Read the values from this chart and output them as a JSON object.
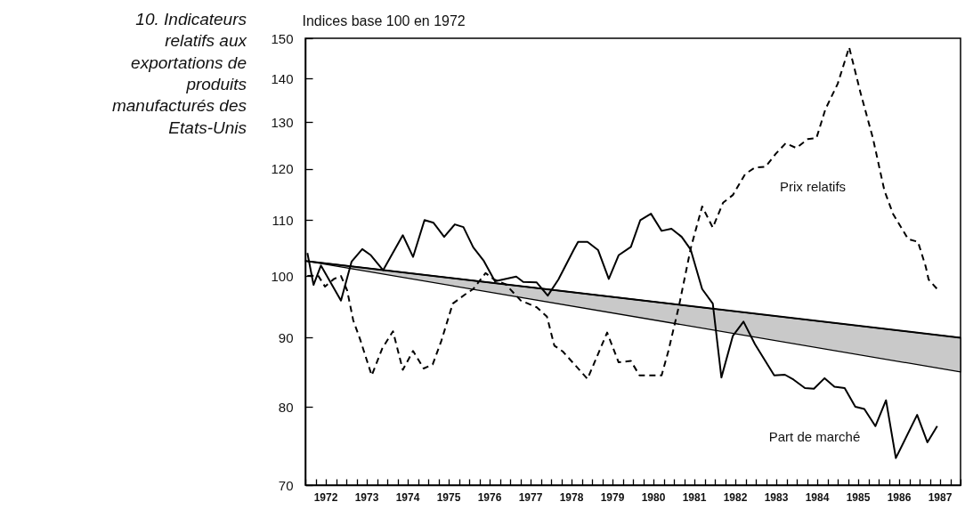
{
  "chart_data": {
    "type": "line",
    "title": "10. Indicateurs relatifs aux exportations de produits manufacturés des Etats-Unis",
    "ylabel": "Indices base 100 en 1972",
    "xlim": [
      1972,
      1988
    ],
    "ylim": [
      70,
      150
    ],
    "log": true,
    "grid": false,
    "legend": false,
    "yticks": [
      70,
      80,
      90,
      100,
      110,
      120,
      130,
      140,
      150
    ],
    "xticks": [
      {
        "value": 1972,
        "label": null
      },
      {
        "value": 1972.25,
        "label": null
      },
      {
        "value": 1972.5,
        "label": "1972"
      },
      {
        "value": 1972.75,
        "label": null
      },
      {
        "value": 1973,
        "label": null
      },
      {
        "value": 1973.25,
        "label": null
      },
      {
        "value": 1973.5,
        "label": "1973"
      },
      {
        "value": 1973.75,
        "label": null
      },
      {
        "value": 1974,
        "label": null
      },
      {
        "value": 1974.25,
        "label": null
      },
      {
        "value": 1974.5,
        "label": "1974"
      },
      {
        "value": 1974.75,
        "label": null
      },
      {
        "value": 1975,
        "label": null
      },
      {
        "value": 1975.25,
        "label": null
      },
      {
        "value": 1975.5,
        "label": "1975"
      },
      {
        "value": 1975.75,
        "label": null
      },
      {
        "value": 1976,
        "label": null
      },
      {
        "value": 1976.25,
        "label": null
      },
      {
        "value": 1976.5,
        "label": "1976"
      },
      {
        "value": 1976.75,
        "label": null
      },
      {
        "value": 1977,
        "label": null
      },
      {
        "value": 1977.25,
        "label": null
      },
      {
        "value": 1977.5,
        "label": "1977"
      },
      {
        "value": 1977.75,
        "label": null
      },
      {
        "value": 1978,
        "label": null
      },
      {
        "value": 1978.25,
        "label": null
      },
      {
        "value": 1978.5,
        "label": "1978"
      },
      {
        "value": 1978.75,
        "label": null
      },
      {
        "value": 1979,
        "label": null
      },
      {
        "value": 1979.25,
        "label": null
      },
      {
        "value": 1979.5,
        "label": "1979"
      },
      {
        "value": 1979.75,
        "label": null
      },
      {
        "value": 1980,
        "label": null
      },
      {
        "value": 1980.25,
        "label": null
      },
      {
        "value": 1980.5,
        "label": "1980"
      },
      {
        "value": 1980.75,
        "label": null
      },
      {
        "value": 1981,
        "label": null
      },
      {
        "value": 1981.25,
        "label": null
      },
      {
        "value": 1981.5,
        "label": "1981"
      },
      {
        "value": 1981.75,
        "label": null
      },
      {
        "value": 1982,
        "label": null
      },
      {
        "value": 1982.25,
        "label": null
      },
      {
        "value": 1982.5,
        "label": "1982"
      },
      {
        "value": 1982.75,
        "label": null
      },
      {
        "value": 1983,
        "label": null
      },
      {
        "value": 1983.25,
        "label": null
      },
      {
        "value": 1983.5,
        "label": "1983"
      },
      {
        "value": 1983.75,
        "label": null
      },
      {
        "value": 1984,
        "label": null
      },
      {
        "value": 1984.25,
        "label": null
      },
      {
        "value": 1984.5,
        "label": "1984"
      },
      {
        "value": 1984.75,
        "label": null
      },
      {
        "value": 1985,
        "label": null
      },
      {
        "value": 1985.25,
        "label": null
      },
      {
        "value": 1985.5,
        "label": "1985"
      },
      {
        "value": 1985.75,
        "label": null
      },
      {
        "value": 1986,
        "label": null
      },
      {
        "value": 1986.25,
        "label": null
      },
      {
        "value": 1986.5,
        "label": "1986"
      },
      {
        "value": 1986.75,
        "label": null
      },
      {
        "value": 1987,
        "label": null
      },
      {
        "value": 1987.25,
        "label": null
      },
      {
        "value": 1987.5,
        "label": "1987"
      },
      {
        "value": 1987.75,
        "label": null
      },
      {
        "value": 1988,
        "label": null
      }
    ],
    "series": [
      {
        "type": "line",
        "color": "#000000",
        "line_style": "solid",
        "x": [
          1972,
          1988
        ],
        "values": [
          102.6,
          90.0
        ],
        "lower": [
          102.6,
          84.9
        ],
        "upper": [
          102.6,
          90.0
        ]
      },
      {
        "name": "Prix relatifs",
        "type": "line",
        "color": "#000000",
        "line_style": "dashed",
        "x": [
          1972.05,
          1972.31,
          1972.48,
          1972.7,
          1972.87,
          1973.02,
          1973.17,
          1973.34,
          1973.62,
          1973.88,
          1974.14,
          1974.38,
          1974.63,
          1974.89,
          1975.11,
          1975.32,
          1975.6,
          1975.88,
          1976.1,
          1976.4,
          1976.61,
          1976.89,
          1977.26,
          1977.65,
          1977.9,
          1978.08,
          1978.29,
          1978.89,
          1979.37,
          1979.65,
          1979.95,
          1980.16,
          1980.7,
          1980.87,
          1981.13,
          1981.41,
          1981.69,
          1981.95,
          1982.2,
          1982.44,
          1982.74,
          1982.98,
          1983.24,
          1983.49,
          1983.73,
          1983.99,
          1984.27,
          1984.48,
          1984.7,
          1985.0,
          1985.28,
          1985.56,
          1985.86,
          1986.14,
          1986.35,
          1986.72,
          1986.96,
          1987.15,
          1987.22,
          1987.43
        ],
        "values": [
          100.0,
          100.1,
          98.2,
          99.5,
          100.0,
          97.6,
          92.7,
          89.7,
          84.4,
          88.4,
          91.0,
          85.2,
          88.0,
          85.4,
          86.0,
          89.5,
          95.4,
          96.8,
          97.8,
          100.5,
          99.4,
          98.6,
          95.9,
          94.8,
          93.3,
          88.8,
          87.9,
          83.9,
          90.8,
          86.3,
          86.5,
          84.4,
          84.4,
          88.1,
          95.2,
          104.8,
          112.6,
          108.6,
          113.3,
          114.8,
          119.0,
          120.3,
          120.5,
          123.2,
          125.4,
          124.4,
          126.3,
          126.5,
          132.9,
          138.8,
          147.7,
          136.6,
          126.5,
          115.7,
          111.2,
          106.5,
          106.0,
          101.6,
          99.4,
          97.8
        ]
      },
      {
        "name": "Part de marché",
        "type": "line",
        "color": "#000000",
        "line_style": "solid",
        "x": [
          1972.05,
          1972.2,
          1972.38,
          1972.87,
          1973.13,
          1973.39,
          1973.6,
          1973.9,
          1974.38,
          1974.63,
          1974.91,
          1975.13,
          1975.39,
          1975.65,
          1975.86,
          1976.1,
          1976.35,
          1976.63,
          1976.83,
          1977.15,
          1977.32,
          1977.65,
          1977.92,
          1978.18,
          1978.55,
          1978.66,
          1978.89,
          1979.15,
          1979.41,
          1979.65,
          1979.95,
          1980.18,
          1980.44,
          1980.7,
          1980.94,
          1981.19,
          1981.41,
          1981.69,
          1981.95,
          1982.16,
          1982.44,
          1982.7,
          1982.98,
          1983.45,
          1983.71,
          1983.92,
          1984.2,
          1984.42,
          1984.68,
          1984.92,
          1985.17,
          1985.43,
          1985.65,
          1985.92,
          1986.18,
          1986.42,
          1986.94,
          1987.19,
          1987.43
        ],
        "values": [
          104.0,
          98.5,
          101.8,
          95.9,
          102.5,
          104.7,
          103.6,
          101.0,
          107.2,
          103.3,
          110.0,
          109.5,
          106.9,
          109.2,
          108.7,
          105.0,
          102.7,
          99.1,
          99.4,
          99.9,
          99.0,
          98.9,
          96.7,
          99.4,
          104.5,
          106.0,
          106.0,
          104.5,
          99.5,
          103.6,
          105.1,
          110.0,
          111.2,
          108.0,
          108.4,
          106.9,
          104.6,
          97.8,
          95.4,
          84.1,
          90.3,
          92.5,
          89.0,
          84.4,
          84.5,
          83.8,
          82.6,
          82.5,
          84.0,
          82.8,
          82.6,
          80.0,
          79.7,
          77.4,
          80.9,
          73.3,
          78.9,
          75.3,
          77.4
        ]
      }
    ]
  }
}
